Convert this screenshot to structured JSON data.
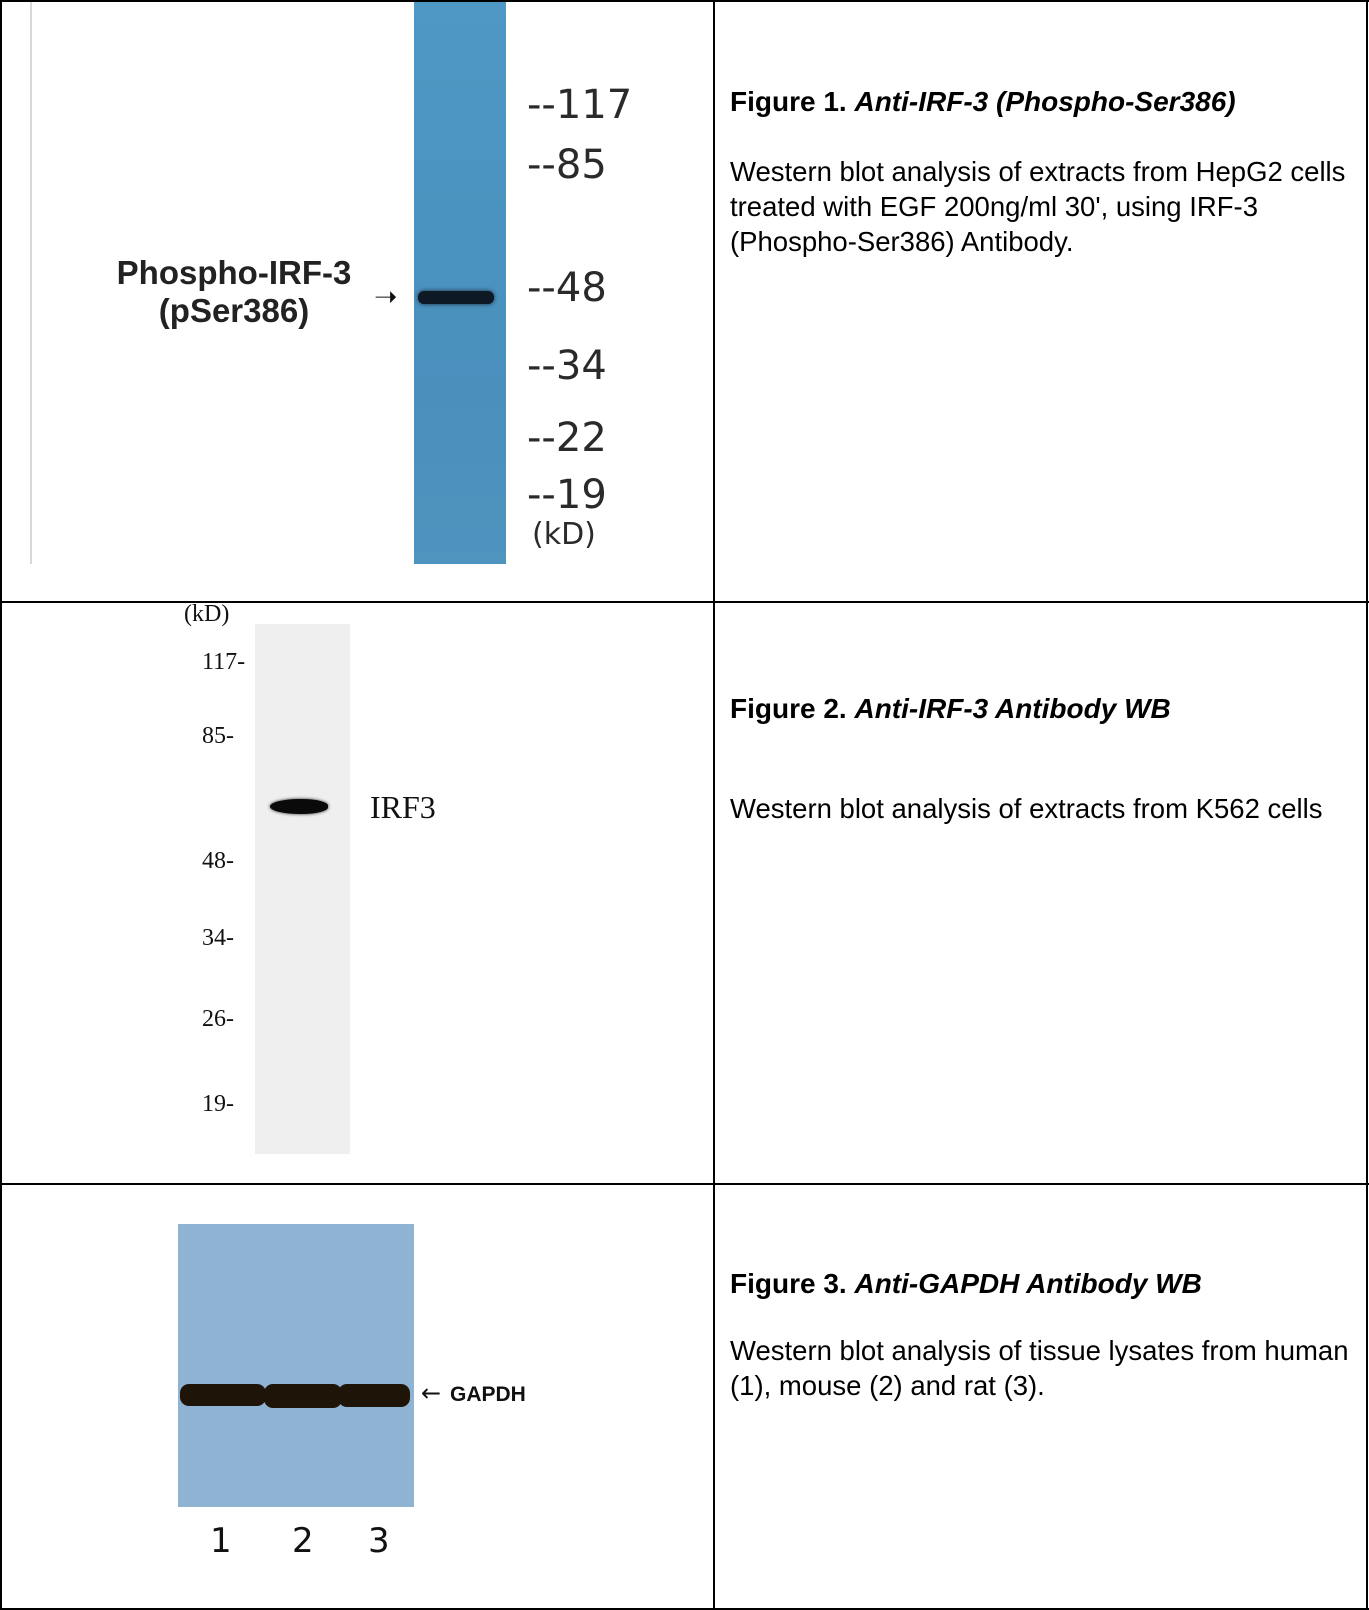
{
  "figures": [
    {
      "title_prefix": "Figure 1.",
      "title_italic": "Anti-IRF-3 (Phospho-Ser386)",
      "description": "Western blot analysis of extracts from HepG2 cells treated with EGF 200ng/ml 30', using IRF-3 (Phospho-Ser386) Antibody.",
      "blot": {
        "band_label_line1": "Phospho-IRF-3",
        "band_label_line2": "(pSer386)",
        "arrow": "➝",
        "markers": [
          "--117",
          "--85",
          "--48",
          "--34",
          "--22",
          "--19"
        ],
        "unit": "(kD)",
        "lane_color": "#4a93c0"
      }
    },
    {
      "title_prefix": "Figure 2.",
      "title_italic": "Anti-IRF-3 Antibody WB",
      "description": "Western blot analysis of extracts from K562 cells",
      "blot": {
        "unit": "(kD)",
        "markers": [
          "117-",
          "85-",
          "48-",
          "34-",
          "26-",
          "19-"
        ],
        "band_label": "IRF3",
        "lane_color": "#eeeeee"
      }
    },
    {
      "title_prefix": "Figure 3.",
      "title_italic": "Anti-GAPDH Antibody WB",
      "description": "Western blot analysis of tissue lysates from human (1), mouse (2) and rat (3).",
      "blot": {
        "band_label": "GAPDH",
        "arrow": "←",
        "lanes": [
          "1",
          "2",
          "3"
        ],
        "membrane_color": "#8fb3d3"
      }
    }
  ]
}
